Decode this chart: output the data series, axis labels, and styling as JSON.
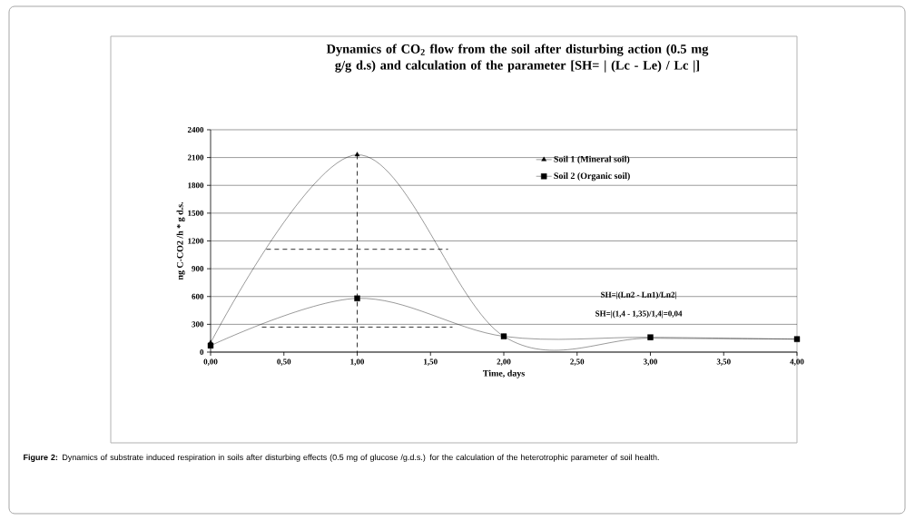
{
  "chart_data": {
    "type": "line",
    "title": "Dynamics of CO$_{2}$ flow from the soil after disturbing action (0.5 mg g/g d.s) and calculation of the parameter [SH= | (Lc - Le) / Lc |]",
    "xlabel": "Time, days",
    "ylabel": "ng C-CO2 /h * g d.s.",
    "x": [
      0,
      1,
      2,
      3,
      4
    ],
    "series": [
      {
        "name": "Soil 1 (Mineral soil)",
        "color": "#000000",
        "marker": "triangle",
        "values": [
          100,
          2130,
          170,
          150,
          140
        ]
      },
      {
        "name": "Soil 2 (Organic soil)",
        "color": "#000000",
        "marker": "square",
        "values": [
          70,
          580,
          170,
          160,
          140
        ]
      },
      {
        "color": "#000000",
        "line_style": "dashed",
        "x": [
          0.38,
          1.62
        ],
        "values": [
          1110,
          1110
        ]
      },
      {
        "color": "#000000",
        "line_style": "dashed",
        "x": [
          0.35,
          1.65
        ],
        "values": [
          270,
          270
        ]
      },
      {
        "color": "#000000",
        "line_style": "dashed",
        "x": [
          1,
          1
        ],
        "values": [
          2130,
          0
        ]
      }
    ],
    "xlim": [
      0,
      4
    ],
    "xticks": [
      {
        "value": 0,
        "label": "0,00"
      },
      {
        "value": 0.5,
        "label": "0,50"
      },
      {
        "value": 1,
        "label": "1,00"
      },
      {
        "value": 1.5,
        "label": "1,50"
      },
      {
        "value": 2,
        "label": "2,00"
      },
      {
        "value": 2.5,
        "label": "2,50"
      },
      {
        "value": 3,
        "label": "3,00"
      },
      {
        "value": 3.5,
        "label": "3,50"
      },
      {
        "value": 4,
        "label": "4,00"
      }
    ],
    "ylim": [
      0,
      2400
    ],
    "yticks": [
      0,
      300,
      600,
      900,
      1200,
      1500,
      1800,
      2100,
      2400
    ],
    "grid": "y",
    "legend": "top right",
    "annotations": [
      "SH=|(Lп2 - Lп1)/Lп2|",
      "SH=|(1,4 - 1,35)/1,4|=0,04",
      "**Figure 2:** Dynamics of substrate induced respiration in soils after disturbing effects (0.5 mg of glucose /g.d.s.) for the calculation of the heterotrophic parameter of soil health."
    ]
  }
}
